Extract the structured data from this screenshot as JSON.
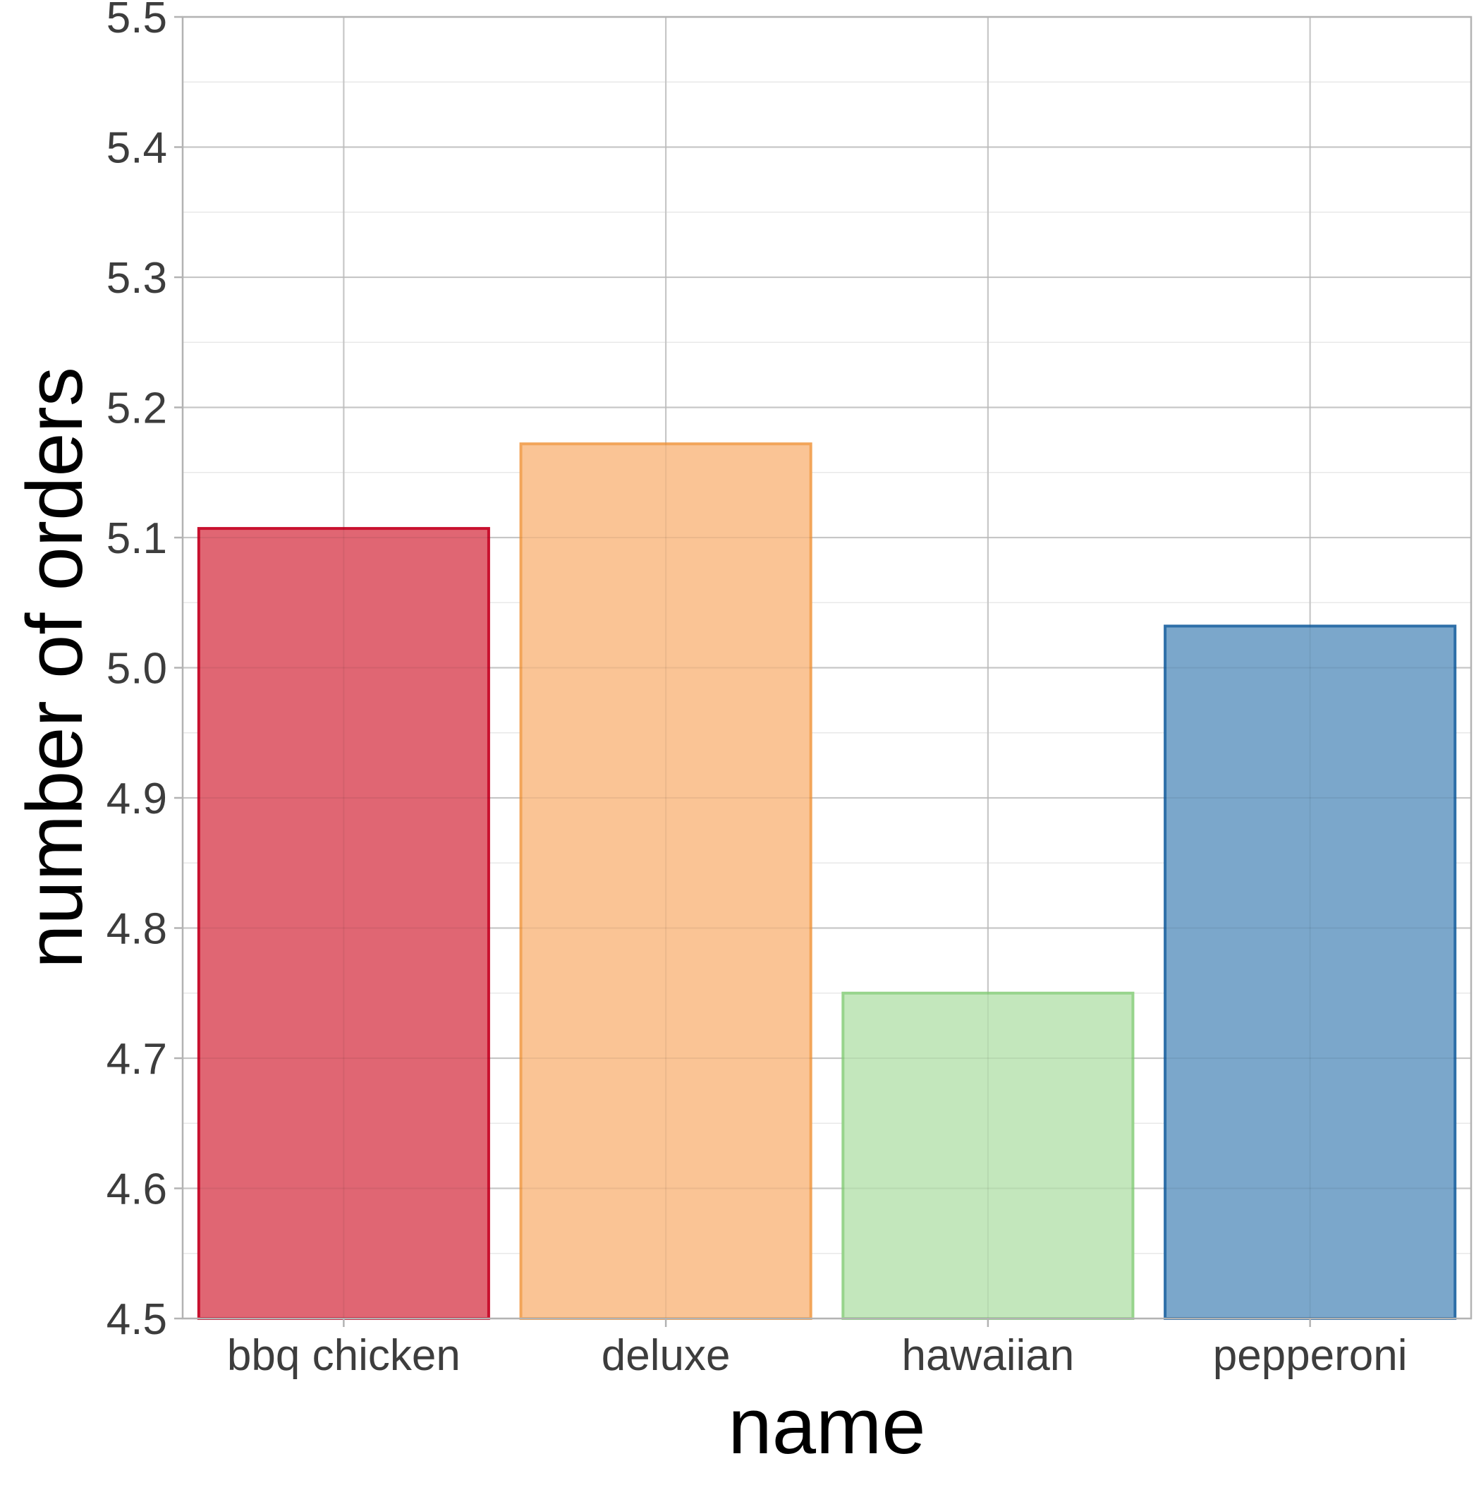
{
  "chart_data": {
    "type": "bar",
    "categories": [
      "bbq chicken",
      "deluxe",
      "hawaiian",
      "pepperoni"
    ],
    "values": [
      5.107,
      5.172,
      4.75,
      5.032
    ],
    "xlabel": "name",
    "ylabel": "number of orders",
    "ylim": [
      4.5,
      5.5
    ],
    "yticks": [
      "4.5",
      "4.6",
      "4.7",
      "4.8",
      "4.9",
      "5.0",
      "5.1",
      "5.2",
      "5.3",
      "5.4",
      "5.5"
    ],
    "grid": true,
    "legend": "none",
    "colors": {
      "fill": [
        "#e06673",
        "#fac495",
        "#c3e7bc",
        "#7ba7cb"
      ],
      "stroke": [
        "#c8102e",
        "#f2a55a",
        "#97d48c",
        "#2e6fa8"
      ]
    }
  }
}
